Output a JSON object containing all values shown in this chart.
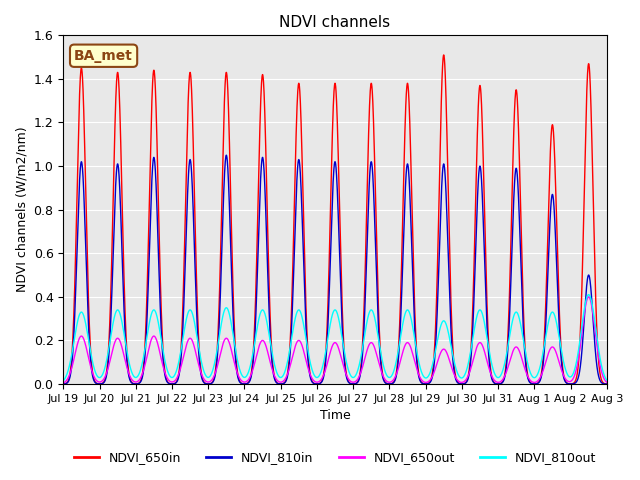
{
  "title": "NDVI channels",
  "ylabel": "NDVI channels (W/m2/nm)",
  "xlabel": "Time",
  "ylim": [
    0,
    1.6
  ],
  "background_color": "#e8e8e8",
  "annotation_text": "BA_met",
  "annotation_bg": "#ffffcc",
  "annotation_edge": "#8b4513",
  "colors": {
    "NDVI_650in": "#ff0000",
    "NDVI_810in": "#0000cc",
    "NDVI_650out": "#ff00ff",
    "NDVI_810out": "#00ffff"
  },
  "tick_dates": [
    "Jul 19",
    "Jul 20",
    "Jul 21",
    "Jul 22",
    "Jul 23",
    "Jul 24",
    "Jul 25",
    "Jul 26",
    "Jul 27",
    "Jul 28",
    "Jul 29",
    "Jul 30",
    "Jul 31",
    "Aug 1",
    "Aug 2",
    "Aug 3"
  ],
  "tick_positions": [
    0,
    1,
    2,
    3,
    4,
    5,
    6,
    7,
    8,
    9,
    10,
    11,
    12,
    13,
    14,
    15
  ],
  "peaks_650in": [
    1.45,
    1.43,
    1.44,
    1.43,
    1.43,
    1.42,
    1.38,
    1.38,
    1.38,
    1.38,
    1.51,
    1.37,
    1.35,
    1.19,
    1.47
  ],
  "peaks_810in": [
    1.02,
    1.01,
    1.04,
    1.03,
    1.05,
    1.04,
    1.03,
    1.02,
    1.02,
    1.01,
    1.01,
    1.0,
    0.99,
    0.87,
    0.5
  ],
  "peaks_650out": [
    0.22,
    0.21,
    0.22,
    0.21,
    0.21,
    0.2,
    0.2,
    0.19,
    0.19,
    0.19,
    0.16,
    0.19,
    0.17,
    0.17,
    0.4
  ],
  "peaks_810out": [
    0.33,
    0.34,
    0.34,
    0.34,
    0.35,
    0.34,
    0.34,
    0.34,
    0.34,
    0.34,
    0.29,
    0.34,
    0.33,
    0.33,
    0.41
  ],
  "yticks": [
    0.0,
    0.2,
    0.4,
    0.6,
    0.8,
    1.0,
    1.2,
    1.4,
    1.6
  ]
}
